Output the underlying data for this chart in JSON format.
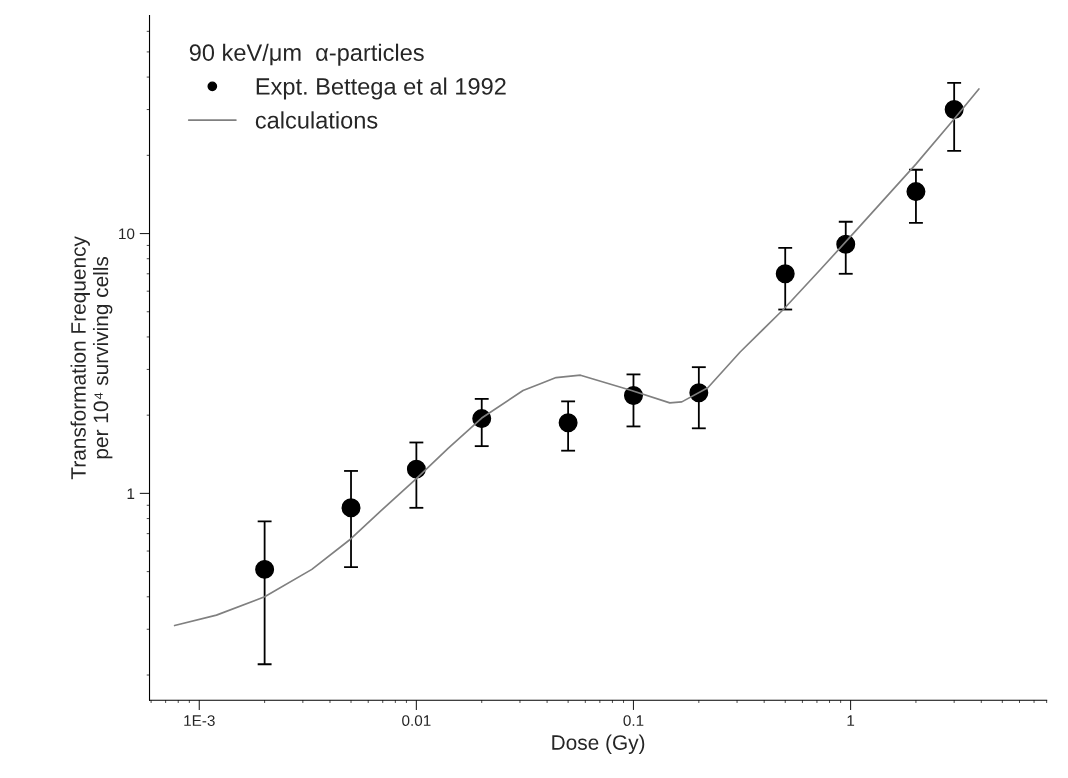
{
  "chart_data": {
    "type": "scatter",
    "xlabel": "Dose (Gy)",
    "ylabel": "Transformation Frequency\nper 10⁴ surviving cells",
    "legend_title": "90 keV/μm  α-particles",
    "log": "xy",
    "xlim": [
      0.00059,
      8
    ],
    "ylim": [
      0.16,
      69
    ],
    "xticks": [
      {
        "value": 0.001,
        "label": "1E-3"
      },
      0.01,
      0.1,
      1
    ],
    "yticks": [
      1,
      10
    ],
    "grid": false,
    "legend": "top left",
    "series": [
      {
        "name": "Expt. Bettega et al 1992",
        "marker": "circle",
        "color": "#000000",
        "x": [
          0.002,
          0.005,
          0.01,
          0.02,
          0.05,
          0.1,
          0.2,
          0.5,
          0.95,
          2.0,
          3.0
        ],
        "values": [
          0.51,
          0.88,
          1.24,
          1.94,
          1.87,
          2.38,
          2.44,
          7.0,
          9.1,
          14.5,
          30
        ],
        "errors": [
          [
            0.22,
            0.78
          ],
          [
            0.52,
            1.22
          ],
          [
            0.88,
            1.57
          ],
          [
            1.52,
            2.31
          ],
          [
            1.46,
            2.26
          ],
          [
            1.81,
            2.87
          ],
          [
            1.78,
            3.06
          ],
          [
            5.1,
            8.8
          ],
          [
            7.0,
            11.1
          ],
          [
            11.0,
            17.6
          ],
          [
            20.8,
            38
          ]
        ]
      },
      {
        "name": "calculations",
        "type": "line",
        "color": "#808080",
        "x": [
          0.00077,
          0.0012,
          0.002,
          0.0033,
          0.0049,
          0.0069,
          0.01,
          0.014,
          0.02,
          0.031,
          0.038,
          0.044,
          0.057,
          0.098,
          0.147,
          0.167,
          0.22,
          0.31,
          0.49,
          0.73,
          1.04,
          2.0,
          3.0,
          3.9
        ],
        "values": [
          0.31,
          0.34,
          0.4,
          0.51,
          0.66,
          0.86,
          1.14,
          1.49,
          1.95,
          2.49,
          2.66,
          2.79,
          2.85,
          2.49,
          2.23,
          2.25,
          2.55,
          3.5,
          5.1,
          7.3,
          10.1,
          18.5,
          27.6,
          36
        ]
      }
    ]
  }
}
